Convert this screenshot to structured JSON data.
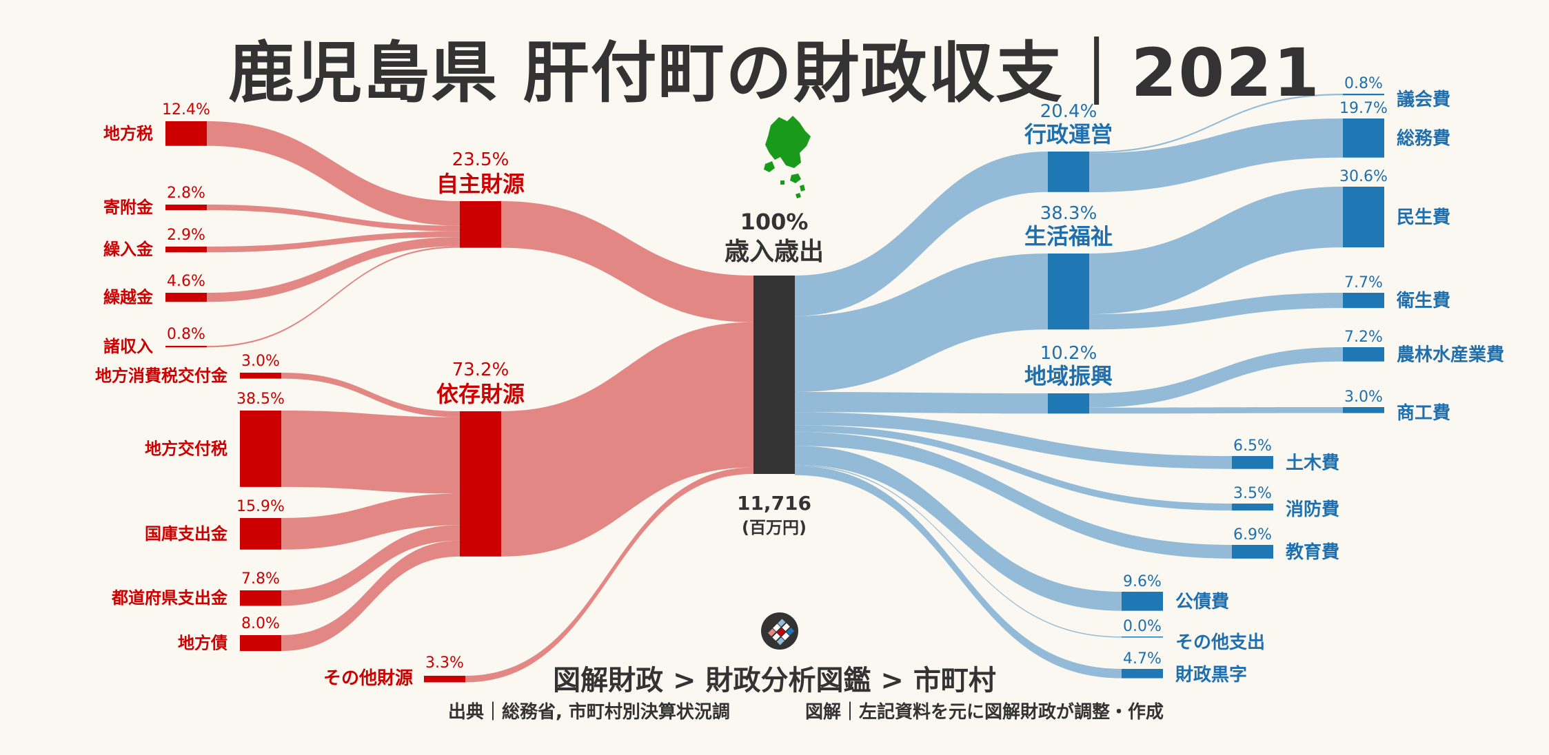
{
  "page": {
    "title": "鹿児島県 肝付町の財政収支｜2021",
    "footer_nav": "図解財政 > 財政分析図鑑 > 市町村",
    "footer_source": "出典｜総務省, 市町村別決算状況調",
    "footer_credit": "図解｜左記資料を元に図解財政が調整・作成"
  },
  "colors": {
    "revenue_node": "#cc0000",
    "revenue_flow": "#e38785",
    "revenue_label": "#cc0000",
    "expense_node": "#1f77b4",
    "expense_flow": "#93bad6",
    "expense_label": "#1f6fae",
    "center_node": "#333333",
    "map": "#1a9a1a"
  },
  "chart_data": {
    "type": "sankey",
    "title": "鹿児島県 肝付町の財政収支｜2021",
    "unit": "%",
    "center": {
      "label": "歳入歳出",
      "percent": "100%",
      "total": "11,716",
      "total_unit": "(百万円)"
    },
    "revenue_groups": [
      {
        "name": "自主財源",
        "percent": "23.5%",
        "value": 23.5,
        "items": [
          {
            "name": "地方税",
            "percent": "12.4%",
            "value": 12.4
          },
          {
            "name": "寄附金",
            "percent": "2.8%",
            "value": 2.8
          },
          {
            "name": "繰入金",
            "percent": "2.9%",
            "value": 2.9
          },
          {
            "name": "繰越金",
            "percent": "4.6%",
            "value": 4.6
          },
          {
            "name": "諸収入",
            "percent": "0.8%",
            "value": 0.8
          }
        ]
      },
      {
        "name": "依存財源",
        "percent": "73.2%",
        "value": 73.2,
        "items": [
          {
            "name": "地方消費税交付金",
            "percent": "3.0%",
            "value": 3.0
          },
          {
            "name": "地方交付税",
            "percent": "38.5%",
            "value": 38.5
          },
          {
            "name": "国庫支出金",
            "percent": "15.9%",
            "value": 15.9
          },
          {
            "name": "都道府県支出金",
            "percent": "7.8%",
            "value": 7.8
          },
          {
            "name": "地方債",
            "percent": "8.0%",
            "value": 8.0
          }
        ]
      }
    ],
    "revenue_direct": [
      {
        "name": "その他財源",
        "percent": "3.3%",
        "value": 3.3
      }
    ],
    "expense_groups": [
      {
        "name": "行政運営",
        "percent": "20.4%",
        "value": 20.4,
        "items": [
          {
            "name": "議会費",
            "percent": "0.8%",
            "value": 0.8
          },
          {
            "name": "総務費",
            "percent": "19.7%",
            "value": 19.7
          }
        ]
      },
      {
        "name": "生活福祉",
        "percent": "38.3%",
        "value": 38.3,
        "items": [
          {
            "name": "民生費",
            "percent": "30.6%",
            "value": 30.6
          },
          {
            "name": "衛生費",
            "percent": "7.7%",
            "value": 7.7
          }
        ]
      },
      {
        "name": "地域振興",
        "percent": "10.2%",
        "value": 10.2,
        "items": [
          {
            "name": "農林水産業費",
            "percent": "7.2%",
            "value": 7.2
          },
          {
            "name": "商工費",
            "percent": "3.0%",
            "value": 3.0
          }
        ]
      }
    ],
    "expense_direct": [
      {
        "name": "土木費",
        "percent": "6.5%",
        "value": 6.5
      },
      {
        "name": "消防費",
        "percent": "3.5%",
        "value": 3.5
      },
      {
        "name": "教育費",
        "percent": "6.9%",
        "value": 6.9
      },
      {
        "name": "公債費",
        "percent": "9.6%",
        "value": 9.6
      },
      {
        "name": "その他支出",
        "percent": "0.0%",
        "value": 0.0
      },
      {
        "name": "財政黒字",
        "percent": "4.7%",
        "value": 4.7
      }
    ]
  }
}
